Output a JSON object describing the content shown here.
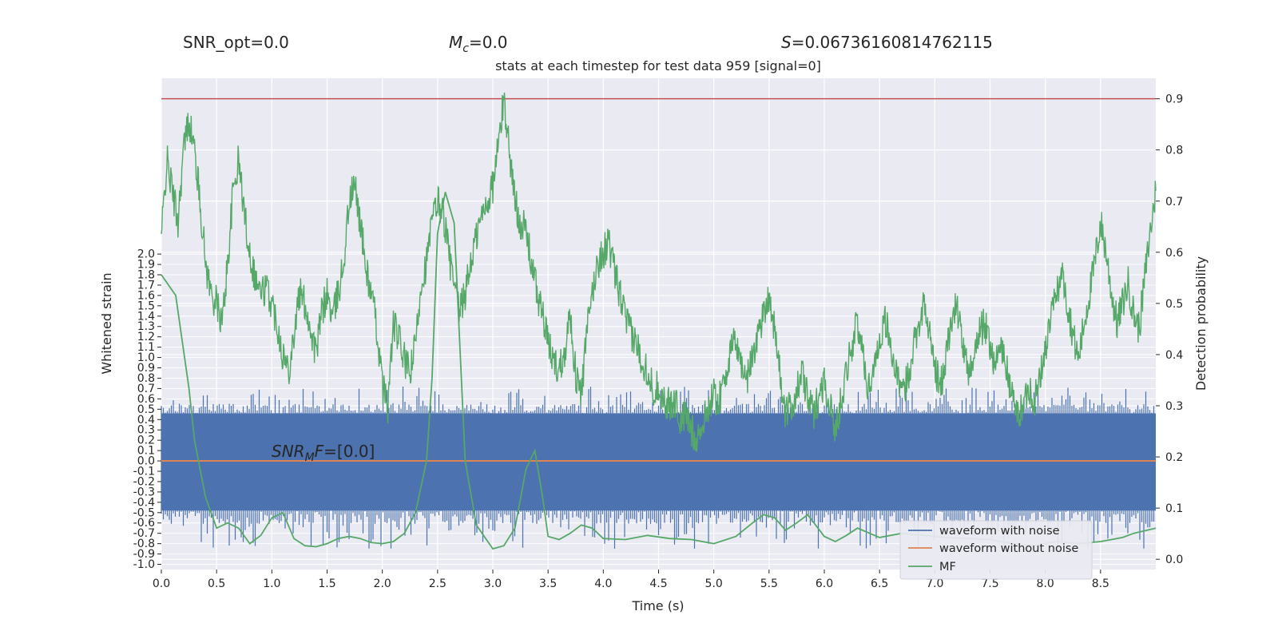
{
  "stats": {
    "snr_opt": "SNR_opt=0.0",
    "mc_symbol": "M",
    "mc_sub": "c",
    "mc_value": "=0.0",
    "s_symbol": "S",
    "s_value": "=0.06736160814762115"
  },
  "annotation": {
    "snr_prefix": "SNR",
    "snr_sub": "M",
    "snr_suffix": "F",
    "snr_value": "=[0.0]"
  },
  "chart_data": {
    "type": "line",
    "title": "stats at each timestep for test data 959 [signal=0]",
    "xlabel": "Time (s)",
    "ylabel_left": "Whitened strain",
    "ylabel_right": "Detection probability",
    "xlim": [
      0.0,
      9.0
    ],
    "ylim_left": [
      -1.05,
      3.7
    ],
    "ylim_right": [
      -0.02,
      0.94
    ],
    "grid": true,
    "legend_placement": "bottom-right",
    "x_ticks": [
      "0.0",
      "0.5",
      "1.0",
      "1.5",
      "2.0",
      "2.5",
      "3.0",
      "3.5",
      "4.0",
      "4.5",
      "5.0",
      "5.5",
      "6.0",
      "6.5",
      "7.0",
      "7.5",
      "8.0",
      "8.5"
    ],
    "y_ticks_left": [
      "-1.0",
      "-0.9",
      "-0.8",
      "-0.7",
      "-0.6",
      "-0.5",
      "-0.4",
      "-0.3",
      "-0.2",
      "-0.1",
      "0.0",
      "0.1",
      "0.2",
      "0.3",
      "0.4",
      "0.5",
      "0.6",
      "0.7",
      "0.8",
      "0.9",
      "1.0",
      "1.1",
      "1.2",
      "1.3",
      "1.4",
      "1.5",
      "1.6",
      "1.7",
      "1.8",
      "1.9",
      "2.0"
    ],
    "y_ticks_right": [
      "0.0",
      "0.1",
      "0.2",
      "0.3",
      "0.4",
      "0.5",
      "0.6",
      "0.7",
      "0.8",
      "0.9"
    ],
    "threshold": {
      "axis": "right",
      "value": 0.9,
      "color": "#c44e52"
    },
    "series": [
      {
        "name": "waveform with noise",
        "axis": "left",
        "color": "#4c72b0",
        "style": "noise band",
        "envelope_typical": [
          -0.48,
          0.46
        ],
        "envelope_extreme": [
          -0.85,
          0.72
        ]
      },
      {
        "name": "waveform without noise",
        "axis": "left",
        "color": "#dd8452",
        "x": [
          0.0,
          9.0
        ],
        "y": [
          0.0,
          0.0
        ]
      },
      {
        "name": "MF",
        "axis": "left",
        "color": "#55a868",
        "x": [
          0.0,
          0.13,
          0.25,
          0.3,
          0.4,
          0.5,
          0.6,
          0.7,
          0.8,
          0.9,
          1.0,
          1.1,
          1.2,
          1.3,
          1.4,
          1.5,
          1.6,
          1.7,
          1.8,
          1.9,
          2.0,
          2.1,
          2.2,
          2.3,
          2.4,
          2.45,
          2.5,
          2.57,
          2.65,
          2.75,
          2.85,
          3.0,
          3.1,
          3.2,
          3.3,
          3.38,
          3.45,
          3.5,
          3.6,
          3.7,
          3.8,
          3.9,
          4.0,
          4.2,
          4.4,
          4.6,
          4.8,
          5.0,
          5.2,
          5.35,
          5.45,
          5.55,
          5.65,
          5.75,
          5.85,
          6.0,
          6.1,
          6.2,
          6.3,
          6.5,
          6.7,
          6.9,
          7.1,
          7.3,
          7.5,
          7.7,
          7.9,
          8.1,
          8.3,
          8.5,
          8.7,
          8.8,
          9.0
        ],
        "y": [
          1.8,
          1.6,
          0.7,
          0.2,
          -0.35,
          -0.65,
          -0.6,
          -0.65,
          -0.8,
          -0.72,
          -0.55,
          -0.5,
          -0.75,
          -0.82,
          -0.83,
          -0.8,
          -0.75,
          -0.73,
          -0.75,
          -0.79,
          -0.8,
          -0.78,
          -0.7,
          -0.5,
          0.0,
          0.8,
          2.2,
          2.6,
          2.3,
          0.0,
          -0.62,
          -0.85,
          -0.82,
          -0.65,
          -0.08,
          0.1,
          -0.35,
          -0.73,
          -0.76,
          -0.7,
          -0.62,
          -0.65,
          -0.75,
          -0.76,
          -0.72,
          -0.75,
          -0.76,
          -0.8,
          -0.73,
          -0.6,
          -0.52,
          -0.55,
          -0.67,
          -0.6,
          -0.52,
          -0.73,
          -0.78,
          -0.72,
          -0.65,
          -0.74,
          -0.7,
          -0.72,
          -0.74,
          -0.75,
          -0.76,
          -0.8,
          -0.82,
          -0.78,
          -0.8,
          -0.78,
          -0.74,
          -0.7,
          -0.65
        ]
      },
      {
        "name": "Detection probability",
        "axis": "right",
        "color": "#55a868",
        "x": [
          0.0,
          0.05,
          0.1,
          0.15,
          0.2,
          0.25,
          0.3,
          0.35,
          0.4,
          0.45,
          0.5,
          0.55,
          0.6,
          0.65,
          0.7,
          0.75,
          0.8,
          0.85,
          0.9,
          0.95,
          1.0,
          1.05,
          1.1,
          1.15,
          1.2,
          1.25,
          1.3,
          1.35,
          1.4,
          1.45,
          1.5,
          1.55,
          1.6,
          1.65,
          1.7,
          1.75,
          1.8,
          1.85,
          1.9,
          1.95,
          2.0,
          2.05,
          2.1,
          2.15,
          2.2,
          2.25,
          2.3,
          2.35,
          2.4,
          2.45,
          2.5,
          2.55,
          2.6,
          2.65,
          2.7,
          2.75,
          2.8,
          2.85,
          2.9,
          2.95,
          3.0,
          3.05,
          3.1,
          3.15,
          3.2,
          3.25,
          3.3,
          3.35,
          3.4,
          3.45,
          3.5,
          3.55,
          3.6,
          3.65,
          3.7,
          3.75,
          3.8,
          3.85,
          3.9,
          3.95,
          4.0,
          4.05,
          4.1,
          4.15,
          4.2,
          4.25,
          4.3,
          4.35,
          4.4,
          4.45,
          4.5,
          4.55,
          4.6,
          4.65,
          4.7,
          4.75,
          4.8,
          4.85,
          4.9,
          4.95,
          5.0,
          5.05,
          5.1,
          5.15,
          5.2,
          5.25,
          5.3,
          5.35,
          5.4,
          5.45,
          5.5,
          5.55,
          5.6,
          5.65,
          5.7,
          5.75,
          5.8,
          5.85,
          5.9,
          5.95,
          6.0,
          6.05,
          6.1,
          6.15,
          6.2,
          6.25,
          6.3,
          6.35,
          6.4,
          6.45,
          6.5,
          6.55,
          6.6,
          6.65,
          6.7,
          6.75,
          6.8,
          6.85,
          6.9,
          6.95,
          7.0,
          7.05,
          7.1,
          7.15,
          7.2,
          7.25,
          7.3,
          7.35,
          7.4,
          7.45,
          7.5,
          7.55,
          7.6,
          7.65,
          7.7,
          7.75,
          7.8,
          7.85,
          7.9,
          7.95,
          8.0,
          8.05,
          8.1,
          8.15,
          8.2,
          8.25,
          8.3,
          8.35,
          8.4,
          8.45,
          8.5,
          8.55,
          8.6,
          8.65,
          8.7,
          8.75,
          8.8,
          8.85,
          8.9,
          8.95,
          9.0
        ],
        "y": [
          0.63,
          0.78,
          0.72,
          0.66,
          0.8,
          0.86,
          0.8,
          0.7,
          0.58,
          0.52,
          0.5,
          0.46,
          0.58,
          0.72,
          0.78,
          0.68,
          0.6,
          0.55,
          0.52,
          0.53,
          0.5,
          0.46,
          0.4,
          0.37,
          0.44,
          0.52,
          0.5,
          0.45,
          0.4,
          0.48,
          0.52,
          0.47,
          0.52,
          0.58,
          0.7,
          0.73,
          0.66,
          0.57,
          0.52,
          0.45,
          0.34,
          0.3,
          0.46,
          0.43,
          0.39,
          0.36,
          0.42,
          0.54,
          0.58,
          0.66,
          0.7,
          0.68,
          0.6,
          0.53,
          0.48,
          0.52,
          0.58,
          0.63,
          0.67,
          0.7,
          0.73,
          0.81,
          0.9,
          0.8,
          0.7,
          0.66,
          0.64,
          0.58,
          0.52,
          0.48,
          0.42,
          0.39,
          0.37,
          0.41,
          0.48,
          0.36,
          0.32,
          0.44,
          0.52,
          0.58,
          0.6,
          0.62,
          0.56,
          0.52,
          0.47,
          0.44,
          0.42,
          0.39,
          0.37,
          0.33,
          0.34,
          0.31,
          0.3,
          0.31,
          0.27,
          0.28,
          0.25,
          0.24,
          0.26,
          0.3,
          0.32,
          0.31,
          0.36,
          0.4,
          0.43,
          0.38,
          0.35,
          0.4,
          0.44,
          0.48,
          0.52,
          0.45,
          0.36,
          0.28,
          0.3,
          0.33,
          0.36,
          0.32,
          0.28,
          0.32,
          0.35,
          0.3,
          0.25,
          0.31,
          0.37,
          0.42,
          0.46,
          0.4,
          0.33,
          0.38,
          0.43,
          0.47,
          0.42,
          0.36,
          0.32,
          0.35,
          0.41,
          0.46,
          0.5,
          0.44,
          0.38,
          0.33,
          0.4,
          0.46,
          0.5,
          0.42,
          0.36,
          0.4,
          0.44,
          0.46,
          0.42,
          0.38,
          0.42,
          0.37,
          0.32,
          0.28,
          0.3,
          0.34,
          0.31,
          0.35,
          0.41,
          0.47,
          0.52,
          0.56,
          0.5,
          0.44,
          0.39,
          0.46,
          0.52,
          0.58,
          0.66,
          0.6,
          0.52,
          0.46,
          0.5,
          0.54,
          0.48,
          0.45,
          0.55,
          0.64,
          0.72
        ]
      }
    ]
  }
}
